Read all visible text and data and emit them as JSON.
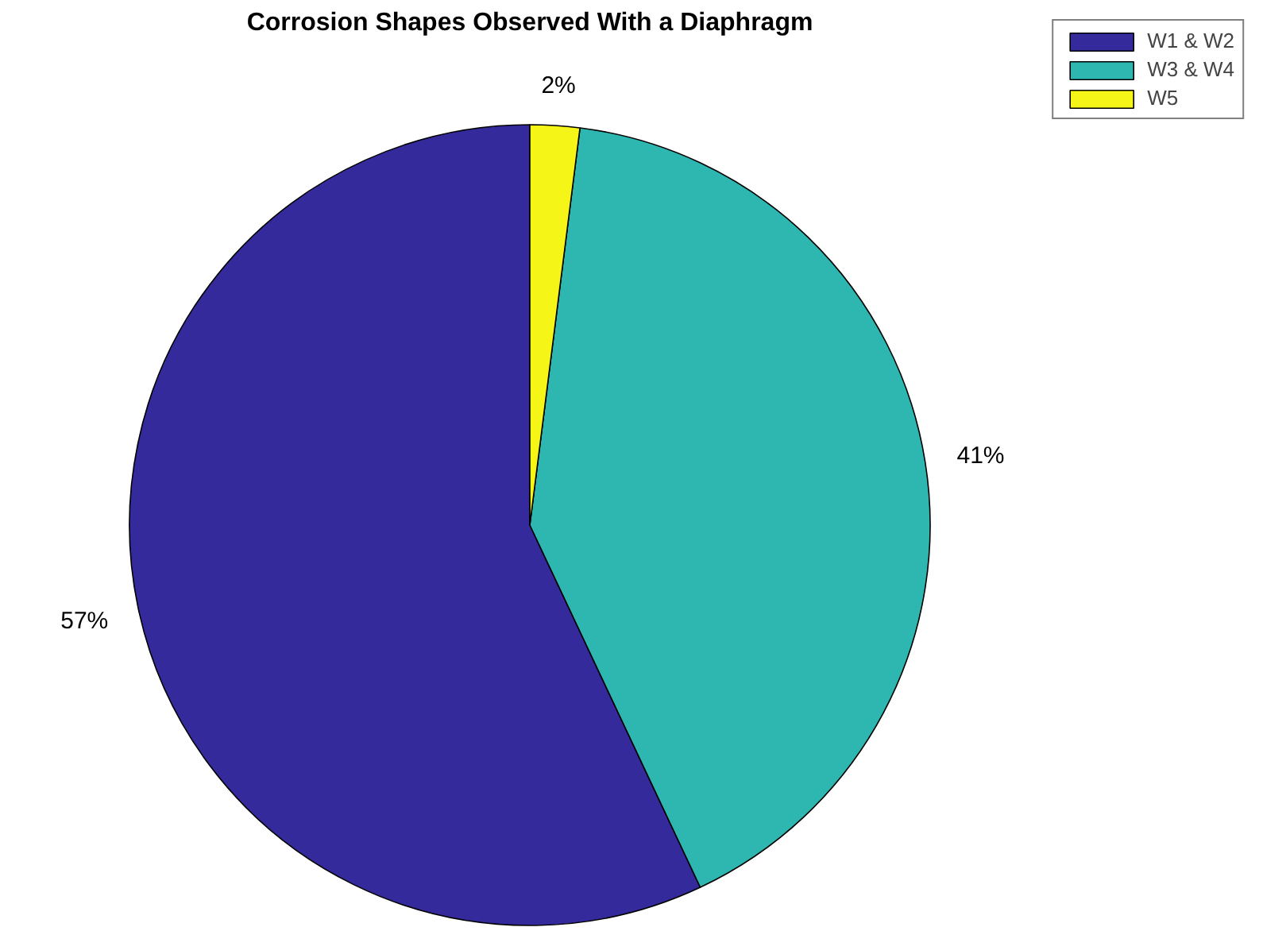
{
  "chart_data": {
    "type": "pie",
    "title": "Corrosion Shapes Observed With a Diaphragm",
    "categories": [
      "W1 & W2",
      "W3 & W4",
      "W5"
    ],
    "values": [
      57,
      41,
      2
    ],
    "colors": [
      "#352a9c",
      "#2eb7b1",
      "#f5f518"
    ],
    "value_labels": [
      "57%",
      "41%",
      "2%"
    ],
    "legend": "top right"
  }
}
